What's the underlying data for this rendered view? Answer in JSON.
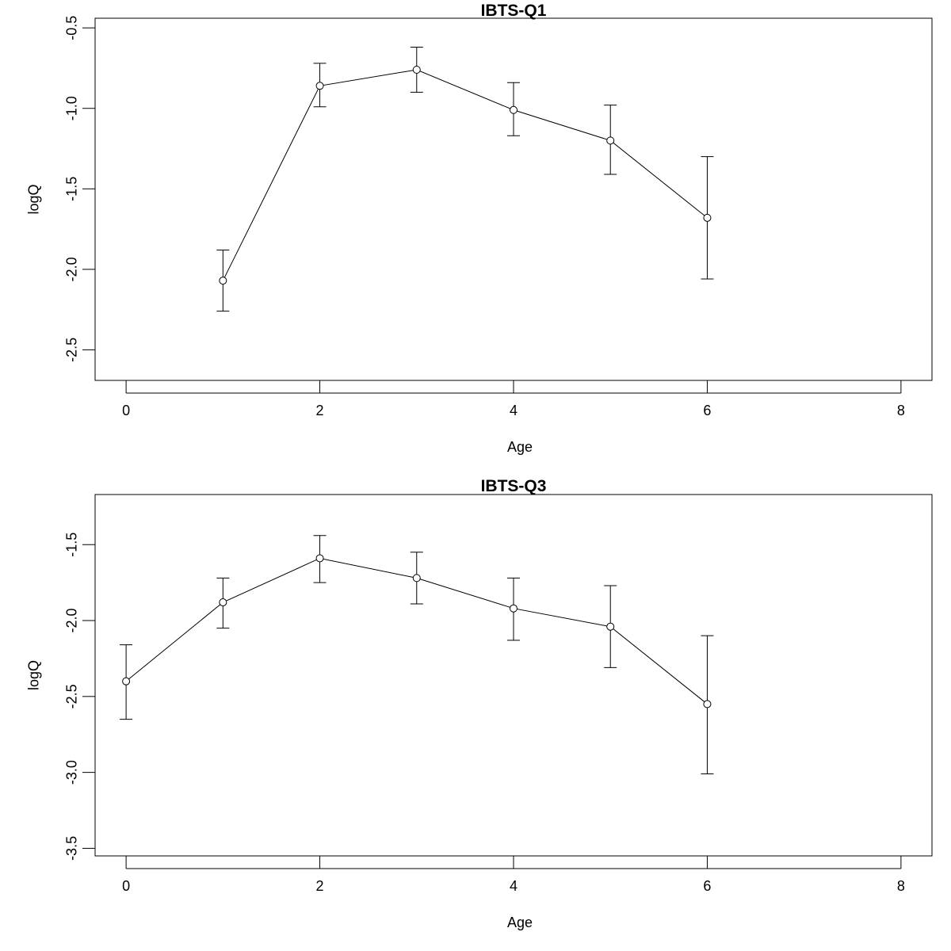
{
  "chart_data": [
    {
      "type": "line",
      "title": "IBTS-Q1",
      "xlabel": "Age",
      "ylabel": "logQ",
      "xlim": [
        -0.32,
        8.32
      ],
      "ylim": [
        -2.69,
        -0.44
      ],
      "xticks": [
        0,
        2,
        4,
        6,
        8
      ],
      "xtick_labels": [
        "0",
        "2",
        "4",
        "6",
        "8"
      ],
      "yticks": [
        -2.5,
        -2.0,
        -1.5,
        -1.0,
        -0.5
      ],
      "ytick_labels": [
        "-2.5",
        "-2.0",
        "-1.5",
        "-1.0",
        "-0.5"
      ],
      "grid": false,
      "points": [
        {
          "x": 1,
          "y": -2.07,
          "lower": -2.26,
          "upper": -1.88
        },
        {
          "x": 2,
          "y": -0.86,
          "lower": -0.99,
          "upper": -0.72
        },
        {
          "x": 3,
          "y": -0.76,
          "lower": -0.9,
          "upper": -0.62
        },
        {
          "x": 4,
          "y": -1.01,
          "lower": -1.17,
          "upper": -0.84
        },
        {
          "x": 5,
          "y": -1.2,
          "lower": -1.41,
          "upper": -0.98
        },
        {
          "x": 6,
          "y": -1.68,
          "lower": -2.06,
          "upper": -1.3
        }
      ]
    },
    {
      "type": "line",
      "title": "IBTS-Q3",
      "xlabel": "Age",
      "ylabel": "logQ",
      "xlim": [
        -0.32,
        8.32
      ],
      "ylim": [
        -3.55,
        -1.17
      ],
      "xticks": [
        0,
        2,
        4,
        6,
        8
      ],
      "xtick_labels": [
        "0",
        "2",
        "4",
        "6",
        "8"
      ],
      "yticks": [
        -3.5,
        -3.0,
        -2.5,
        -2.0,
        -1.5
      ],
      "ytick_labels": [
        "-3.5",
        "-3.0",
        "-2.5",
        "-2.0",
        "-1.5"
      ],
      "grid": false,
      "points": [
        {
          "x": 0,
          "y": -2.4,
          "lower": -2.65,
          "upper": -2.16
        },
        {
          "x": 1,
          "y": -1.88,
          "lower": -2.05,
          "upper": -1.72
        },
        {
          "x": 2,
          "y": -1.59,
          "lower": -1.75,
          "upper": -1.44
        },
        {
          "x": 3,
          "y": -1.72,
          "lower": -1.89,
          "upper": -1.55
        },
        {
          "x": 4,
          "y": -1.92,
          "lower": -2.13,
          "upper": -1.72
        },
        {
          "x": 5,
          "y": -2.04,
          "lower": -2.31,
          "upper": -1.77
        },
        {
          "x": 6,
          "y": -2.55,
          "lower": -3.01,
          "upper": -2.1
        }
      ]
    }
  ]
}
